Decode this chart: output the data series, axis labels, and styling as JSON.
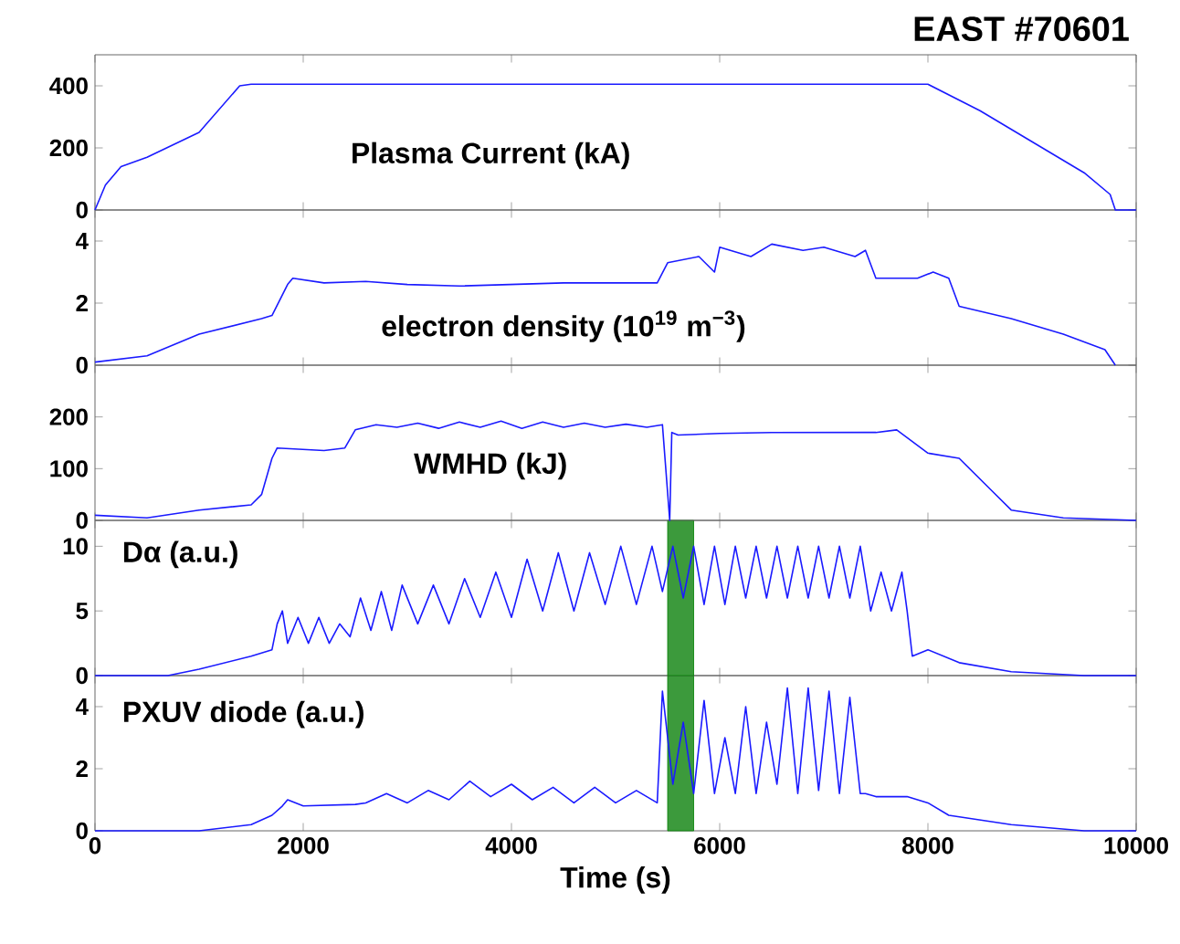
{
  "chart_data": [
    {
      "type": "line",
      "title": "EAST #70601",
      "annotations": [
        "Plasma Current (kA)"
      ],
      "xlim": [
        0,
        10000
      ],
      "xticks": [
        0,
        2000,
        4000,
        6000,
        8000,
        10000
      ],
      "ylim": [
        0,
        500
      ],
      "yticks": [
        0,
        200,
        400
      ],
      "tick_labels": "y",
      "series": [
        {
          "color": "#1a1aff",
          "x": [
            0,
            100,
            250,
            500,
            1000,
            1390,
            1500,
            3000,
            4000,
            5000,
            6000,
            7000,
            8000,
            8500,
            9000,
            9500,
            9750,
            9800,
            10000
          ],
          "values": [
            0,
            80,
            140,
            170,
            250,
            400,
            405,
            405,
            405,
            405,
            405,
            405,
            405,
            320,
            220,
            120,
            50,
            0,
            0
          ]
        }
      ]
    },
    {
      "type": "line",
      "annotations": [
        "electron density (10$^{19}$ m$^{−3}$)"
      ],
      "xlim": [
        0,
        10000
      ],
      "xticks": [
        0,
        2000,
        4000,
        6000,
        8000,
        10000
      ],
      "ylim": [
        0,
        5
      ],
      "yticks": [
        0,
        2,
        4
      ],
      "tick_labels": "y",
      "series": [
        {
          "color": "#1a1aff",
          "x": [
            0,
            500,
            1000,
            1600,
            1700,
            1850,
            1900,
            2200,
            2600,
            3000,
            3500,
            4500,
            5400,
            5500,
            5800,
            5950,
            6000,
            6300,
            6500,
            6800,
            7000,
            7300,
            7400,
            7500,
            7900,
            8050,
            8200,
            8300,
            8800,
            9300,
            9700,
            9800
          ],
          "values": [
            0.1,
            0.3,
            1.0,
            1.5,
            1.6,
            2.6,
            2.8,
            2.65,
            2.7,
            2.6,
            2.55,
            2.65,
            2.65,
            3.3,
            3.5,
            3.0,
            3.8,
            3.5,
            3.9,
            3.7,
            3.8,
            3.5,
            3.7,
            2.8,
            2.8,
            3.0,
            2.8,
            1.9,
            1.5,
            1.0,
            0.5,
            0
          ]
        }
      ]
    },
    {
      "type": "line",
      "annotations": [
        "WMHD (kJ)"
      ],
      "xlim": [
        0,
        10000
      ],
      "xticks": [
        0,
        2000,
        4000,
        6000,
        8000,
        10000
      ],
      "ylim": [
        0,
        300
      ],
      "yticks": [
        0,
        100,
        200
      ],
      "tick_labels": "y",
      "series": [
        {
          "color": "#1a1aff",
          "x": [
            0,
            500,
            1000,
            1500,
            1600,
            1700,
            1750,
            2200,
            2400,
            2500,
            2700,
            2900,
            3100,
            3300,
            3500,
            3700,
            3900,
            4100,
            4300,
            4500,
            4700,
            4900,
            5100,
            5300,
            5450,
            5520,
            5540,
            5600,
            6000,
            6500,
            7000,
            7500,
            7700,
            7800,
            8000,
            8300,
            8600,
            8800,
            9300,
            10000
          ],
          "values": [
            10,
            5,
            20,
            30,
            50,
            120,
            140,
            135,
            140,
            175,
            185,
            180,
            188,
            178,
            190,
            180,
            192,
            178,
            190,
            180,
            188,
            180,
            186,
            180,
            185,
            0,
            170,
            165,
            168,
            170,
            170,
            170,
            175,
            160,
            130,
            120,
            60,
            20,
            5,
            0
          ]
        }
      ]
    },
    {
      "type": "line",
      "annotations": [
        "Dα (a.u.)"
      ],
      "xlim": [
        0,
        10000
      ],
      "xticks": [
        0,
        2000,
        4000,
        6000,
        8000,
        10000
      ],
      "ylim": [
        0,
        12
      ],
      "yticks": [
        0,
        5,
        10
      ],
      "tick_labels": "y",
      "bands": [
        {
          "axis": "x",
          "from": 5500,
          "to": 5750,
          "color": "#3c9a3c"
        }
      ],
      "series": [
        {
          "color": "#1a1aff",
          "x": [
            0,
            700,
            1000,
            1500,
            1700,
            1750,
            1800,
            1850,
            1950,
            2050,
            2150,
            2250,
            2350,
            2450,
            2550,
            2650,
            2750,
            2850,
            2950,
            3100,
            3250,
            3400,
            3550,
            3700,
            3850,
            4000,
            4150,
            4300,
            4450,
            4600,
            4750,
            4900,
            5050,
            5200,
            5350,
            5450,
            5550,
            5650,
            5750,
            5850,
            5950,
            6050,
            6150,
            6250,
            6350,
            6450,
            6550,
            6650,
            6750,
            6850,
            6950,
            7050,
            7150,
            7250,
            7350,
            7450,
            7550,
            7650,
            7750,
            7800,
            7850,
            8000,
            8300,
            8800,
            9500,
            10000
          ],
          "values": [
            0,
            0,
            0.5,
            1.5,
            2,
            4,
            5,
            2.5,
            4.5,
            2.5,
            4.5,
            2.5,
            4,
            3,
            6,
            3.5,
            6.5,
            3.5,
            7,
            4,
            7,
            4,
            7.5,
            4.5,
            8,
            4.5,
            9,
            5,
            9.5,
            5,
            9.5,
            5.5,
            10,
            5.5,
            10,
            6.5,
            10,
            6,
            10,
            5.5,
            10,
            5.5,
            10,
            6,
            10,
            6,
            10,
            6,
            10,
            6,
            10,
            6,
            10,
            6,
            10,
            5,
            8,
            5,
            8,
            5,
            1.5,
            2,
            1,
            0.3,
            0,
            0
          ]
        }
      ]
    },
    {
      "type": "line",
      "annotations": [
        "PXUV diode (a.u.)"
      ],
      "xlabel": "Time (s)",
      "xlim": [
        0,
        10000
      ],
      "xticks": [
        0,
        2000,
        4000,
        6000,
        8000,
        10000
      ],
      "ylim": [
        0,
        5
      ],
      "yticks": [
        0,
        2,
        4
      ],
      "bands": [
        {
          "axis": "x",
          "from": 5500,
          "to": 5750,
          "color": "#3c9a3c"
        }
      ],
      "series": [
        {
          "color": "#1a1aff",
          "x": [
            0,
            1000,
            1500,
            1700,
            1800,
            1850,
            2000,
            2500,
            2600,
            2800,
            3000,
            3200,
            3400,
            3600,
            3800,
            4000,
            4200,
            4400,
            4600,
            4800,
            5000,
            5200,
            5400,
            5450,
            5550,
            5650,
            5750,
            5850,
            5950,
            6050,
            6150,
            6250,
            6350,
            6450,
            6550,
            6650,
            6750,
            6850,
            6950,
            7050,
            7150,
            7250,
            7350,
            7400,
            7500,
            7800,
            8000,
            8200,
            8800,
            9500,
            10000
          ],
          "values": [
            0,
            0,
            0.2,
            0.5,
            0.8,
            1.0,
            0.8,
            0.85,
            0.9,
            1.2,
            0.9,
            1.3,
            1.0,
            1.6,
            1.1,
            1.5,
            1.0,
            1.4,
            0.9,
            1.4,
            0.9,
            1.3,
            0.9,
            4.5,
            1.5,
            3.5,
            1.2,
            4.2,
            1.2,
            3.0,
            1.2,
            4.0,
            1.2,
            3.5,
            1.5,
            4.6,
            1.2,
            4.6,
            1.3,
            4.5,
            1.2,
            4.3,
            1.2,
            1.2,
            1.1,
            1.1,
            0.9,
            0.5,
            0.2,
            0,
            0
          ]
        }
      ]
    }
  ]
}
